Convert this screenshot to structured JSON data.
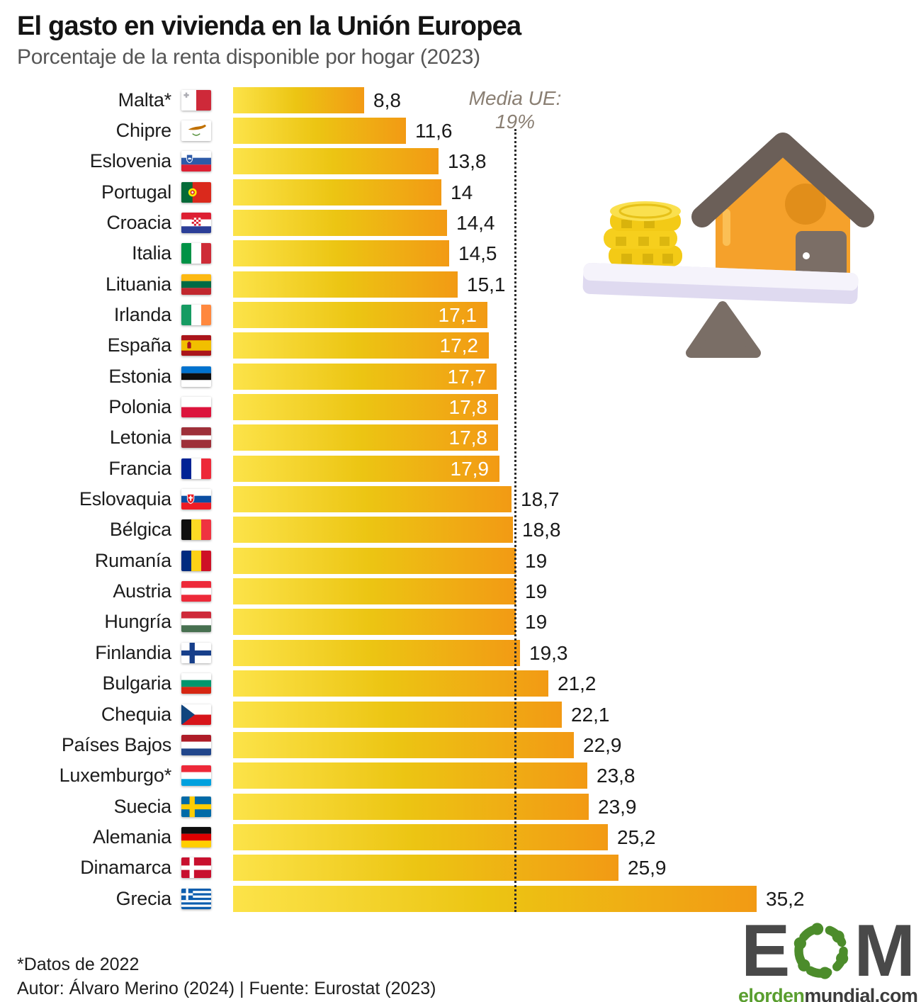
{
  "header": {
    "title": "El gasto en vivienda en la Unión Europea",
    "subtitle": "Porcentaje de la renta disponible por hogar (2023)"
  },
  "chart_data": {
    "type": "bar",
    "orientation": "horizontal",
    "title": "El gasto en vivienda en la Unión Europea",
    "subtitle": "Porcentaje de la renta disponible por hogar (2023)",
    "unit": "% de la renta disponible por hogar",
    "xlim": [
      0,
      36
    ],
    "grid": false,
    "legend": "none",
    "average_line": {
      "value": 19,
      "label": "Media UE:",
      "value_label": "19%"
    },
    "categories": [
      "Malta*",
      "Chipre",
      "Eslovenia",
      "Portugal",
      "Croacia",
      "Italia",
      "Lituania",
      "Irlanda",
      "España",
      "Estonia",
      "Polonia",
      "Letonia",
      "Francia",
      "Eslovaquia",
      "Bélgica",
      "Rumanía",
      "Austria",
      "Hungría",
      "Finlandia",
      "Bulgaria",
      "Chequia",
      "Países Bajos",
      "Luxemburgo*",
      "Suecia",
      "Alemania",
      "Dinamarca",
      "Grecia"
    ],
    "values": [
      8.8,
      11.6,
      13.8,
      14,
      14.4,
      14.5,
      15.1,
      17.1,
      17.2,
      17.7,
      17.8,
      17.8,
      17.9,
      18.7,
      18.8,
      19,
      19,
      19,
      19.3,
      21.2,
      22.1,
      22.9,
      23.8,
      23.9,
      25.2,
      25.9,
      35.2
    ],
    "rows": [
      {
        "country": "Malta*",
        "flag": "malta",
        "value": 8.8,
        "display": "8,8",
        "label_inside": false
      },
      {
        "country": "Chipre",
        "flag": "cyprus",
        "value": 11.6,
        "display": "11,6",
        "label_inside": false
      },
      {
        "country": "Eslovenia",
        "flag": "slovenia",
        "value": 13.8,
        "display": "13,8",
        "label_inside": false
      },
      {
        "country": "Portugal",
        "flag": "portugal",
        "value": 14,
        "display": "14",
        "label_inside": false
      },
      {
        "country": "Croacia",
        "flag": "croatia",
        "value": 14.4,
        "display": "14,4",
        "label_inside": false
      },
      {
        "country": "Italia",
        "flag": "italy",
        "value": 14.5,
        "display": "14,5",
        "label_inside": false
      },
      {
        "country": "Lituania",
        "flag": "lithuania",
        "value": 15.1,
        "display": "15,1",
        "label_inside": false
      },
      {
        "country": "Irlanda",
        "flag": "ireland",
        "value": 17.1,
        "display": "17,1",
        "label_inside": true
      },
      {
        "country": "España",
        "flag": "spain",
        "value": 17.2,
        "display": "17,2",
        "label_inside": true
      },
      {
        "country": "Estonia",
        "flag": "estonia",
        "value": 17.7,
        "display": "17,7",
        "label_inside": true
      },
      {
        "country": "Polonia",
        "flag": "poland",
        "value": 17.8,
        "display": "17,8",
        "label_inside": true
      },
      {
        "country": "Letonia",
        "flag": "latvia",
        "value": 17.8,
        "display": "17,8",
        "label_inside": true
      },
      {
        "country": "Francia",
        "flag": "france",
        "value": 17.9,
        "display": "17,9",
        "label_inside": true
      },
      {
        "country": "Eslovaquia",
        "flag": "slovakia",
        "value": 18.7,
        "display": "18,7",
        "label_inside": false
      },
      {
        "country": "Bélgica",
        "flag": "belgium",
        "value": 18.8,
        "display": "18,8",
        "label_inside": false
      },
      {
        "country": "Rumanía",
        "flag": "romania",
        "value": 19,
        "display": "19",
        "label_inside": false
      },
      {
        "country": "Austria",
        "flag": "austria",
        "value": 19,
        "display": "19",
        "label_inside": false
      },
      {
        "country": "Hungría",
        "flag": "hungary",
        "value": 19,
        "display": "19",
        "label_inside": false
      },
      {
        "country": "Finlandia",
        "flag": "finland",
        "value": 19.3,
        "display": "19,3",
        "label_inside": false
      },
      {
        "country": "Bulgaria",
        "flag": "bulgaria",
        "value": 21.2,
        "display": "21,2",
        "label_inside": false
      },
      {
        "country": "Chequia",
        "flag": "czechia",
        "value": 22.1,
        "display": "22,1",
        "label_inside": false
      },
      {
        "country": "Países Bajos",
        "flag": "netherlands",
        "value": 22.9,
        "display": "22,9",
        "label_inside": false
      },
      {
        "country": "Luxemburgo*",
        "flag": "luxembourg",
        "value": 23.8,
        "display": "23,8",
        "label_inside": false
      },
      {
        "country": "Suecia",
        "flag": "sweden",
        "value": 23.9,
        "display": "23,9",
        "label_inside": false
      },
      {
        "country": "Alemania",
        "flag": "germany",
        "value": 25.2,
        "display": "25,2",
        "label_inside": false
      },
      {
        "country": "Dinamarca",
        "flag": "denmark",
        "value": 25.9,
        "display": "25,9",
        "label_inside": false
      },
      {
        "country": "Grecia",
        "flag": "greece",
        "value": 35.2,
        "display": "35,2",
        "label_inside": false
      }
    ]
  },
  "illustration": {
    "name": "house-and-coins-on-balance"
  },
  "footer": {
    "note": "*Datos de 2022",
    "credit": "Autor: Álvaro Merino (2024) | Fuente: Eurostat (2023)"
  },
  "logo": {
    "letter_e": "E",
    "letter_m": "M",
    "site_green": "elorden",
    "site_dark": "mundial.com"
  },
  "colors": {
    "bar_gradient_start": "#FCE349",
    "bar_gradient_mid": "#ECC513",
    "bar_gradient_end": "#F29A14",
    "value_text": "#1A1A1A",
    "value_text_inside": "#FFFFFF",
    "average_label": "#8A7F73",
    "title": "#141414",
    "subtitle": "#565656",
    "logo_green": "#4C8C2B",
    "logo_gray": "#494949"
  }
}
